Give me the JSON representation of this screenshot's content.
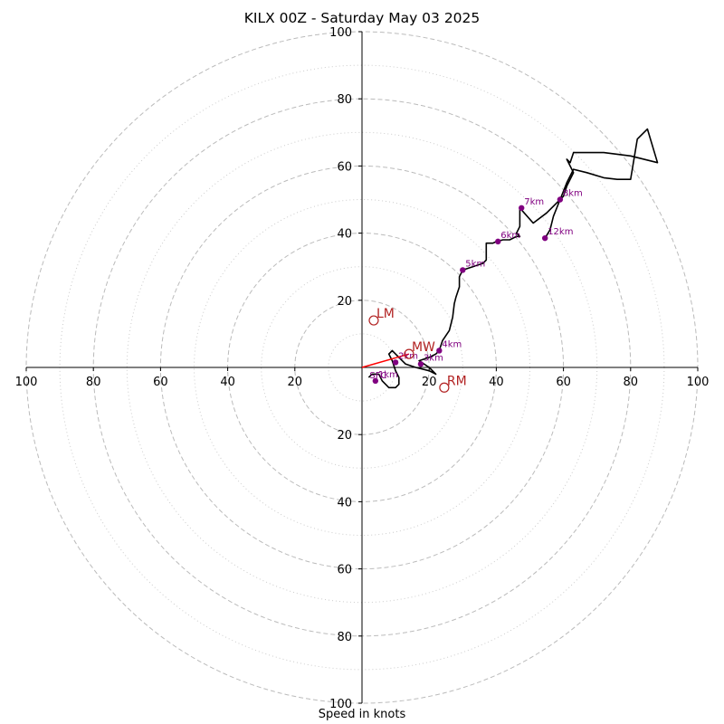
{
  "chart_data": {
    "type": "hodograph",
    "title": "KILX 00Z - Saturday May 03 2025",
    "xlabel": "Speed in knots",
    "ylabel": "",
    "range": [
      -100,
      100
    ],
    "rings_major": [
      20,
      40,
      60,
      80,
      100
    ],
    "rings_minor": [
      10,
      30,
      50,
      70,
      90
    ],
    "tick_values": [
      20,
      40,
      60,
      80,
      100
    ],
    "grid": true,
    "colors": {
      "trace": "#000000",
      "height_markers": "#800080",
      "motion_markers": "#b22222",
      "mean_wind_vector": "#ff0000",
      "grid": "#bbbbbb"
    },
    "wind_trace": [
      [
        2,
        -3
      ],
      [
        3,
        -2
      ],
      [
        5,
        -2
      ],
      [
        6,
        -4
      ],
      [
        7,
        -5
      ],
      [
        8,
        -6
      ],
      [
        10,
        -6
      ],
      [
        11,
        -5
      ],
      [
        11,
        -3
      ],
      [
        10,
        -1
      ],
      [
        9,
        2
      ],
      [
        8,
        4
      ],
      [
        9,
        5
      ],
      [
        11,
        3
      ],
      [
        13,
        1
      ],
      [
        16,
        0
      ],
      [
        20,
        -1
      ],
      [
        22,
        -2
      ],
      [
        20,
        0
      ],
      [
        17,
        2
      ],
      [
        20,
        3
      ],
      [
        22,
        4
      ],
      [
        23,
        5
      ],
      [
        24,
        8
      ],
      [
        26,
        11
      ],
      [
        27,
        15
      ],
      [
        27.5,
        19
      ],
      [
        28,
        21
      ],
      [
        29,
        24
      ],
      [
        29,
        27
      ],
      [
        30,
        29
      ],
      [
        33,
        30
      ],
      [
        36,
        31
      ],
      [
        37,
        32
      ],
      [
        37,
        34
      ],
      [
        37,
        36
      ],
      [
        37,
        37
      ],
      [
        39,
        37
      ],
      [
        40,
        37.5
      ],
      [
        42,
        38
      ],
      [
        44,
        38
      ],
      [
        46,
        39
      ],
      [
        47,
        39
      ],
      [
        46,
        40
      ],
      [
        47,
        42
      ],
      [
        47,
        44
      ],
      [
        47,
        46
      ],
      [
        47,
        47.5
      ],
      [
        51,
        43
      ],
      [
        55,
        46
      ],
      [
        59,
        50
      ],
      [
        60,
        51
      ],
      [
        61,
        54
      ],
      [
        63,
        58
      ],
      [
        61,
        62
      ],
      [
        62,
        61
      ],
      [
        63,
        64
      ],
      [
        72,
        64
      ],
      [
        80,
        63
      ],
      [
        88,
        61
      ],
      [
        85,
        71
      ],
      [
        82,
        68
      ],
      [
        80,
        56
      ],
      [
        76,
        56
      ],
      [
        72,
        56.5
      ],
      [
        67,
        58
      ],
      [
        63,
        59
      ],
      [
        61,
        55
      ],
      [
        59,
        50
      ],
      [
        57,
        45
      ],
      [
        56,
        41
      ],
      [
        54.5,
        38.5
      ]
    ],
    "height_points": [
      {
        "label": "1km",
        "u": 4,
        "v": -4
      },
      {
        "label": "2km",
        "u": 10,
        "v": 1.5
      },
      {
        "label": "3km",
        "u": 17.5,
        "v": 1
      },
      {
        "label": "4km",
        "u": 23,
        "v": 5
      },
      {
        "label": "5km",
        "u": 30,
        "v": 29
      },
      {
        "label": "6km",
        "u": 40.5,
        "v": 37.5
      },
      {
        "label": "7km",
        "u": 47.5,
        "v": 47.5
      },
      {
        "label": "8km",
        "u": 59,
        "v": 50
      },
      {
        "label": "12km",
        "u": 54.5,
        "v": 38.5
      }
    ],
    "surface_label": "SFC",
    "motion_points": [
      {
        "label": "LM",
        "u": 3.5,
        "v": 14
      },
      {
        "label": "MW",
        "u": 14,
        "v": 4
      },
      {
        "label": "RM",
        "u": 24.5,
        "v": -6
      }
    ],
    "mean_wind_vector": {
      "u": 14,
      "v": 4
    }
  }
}
